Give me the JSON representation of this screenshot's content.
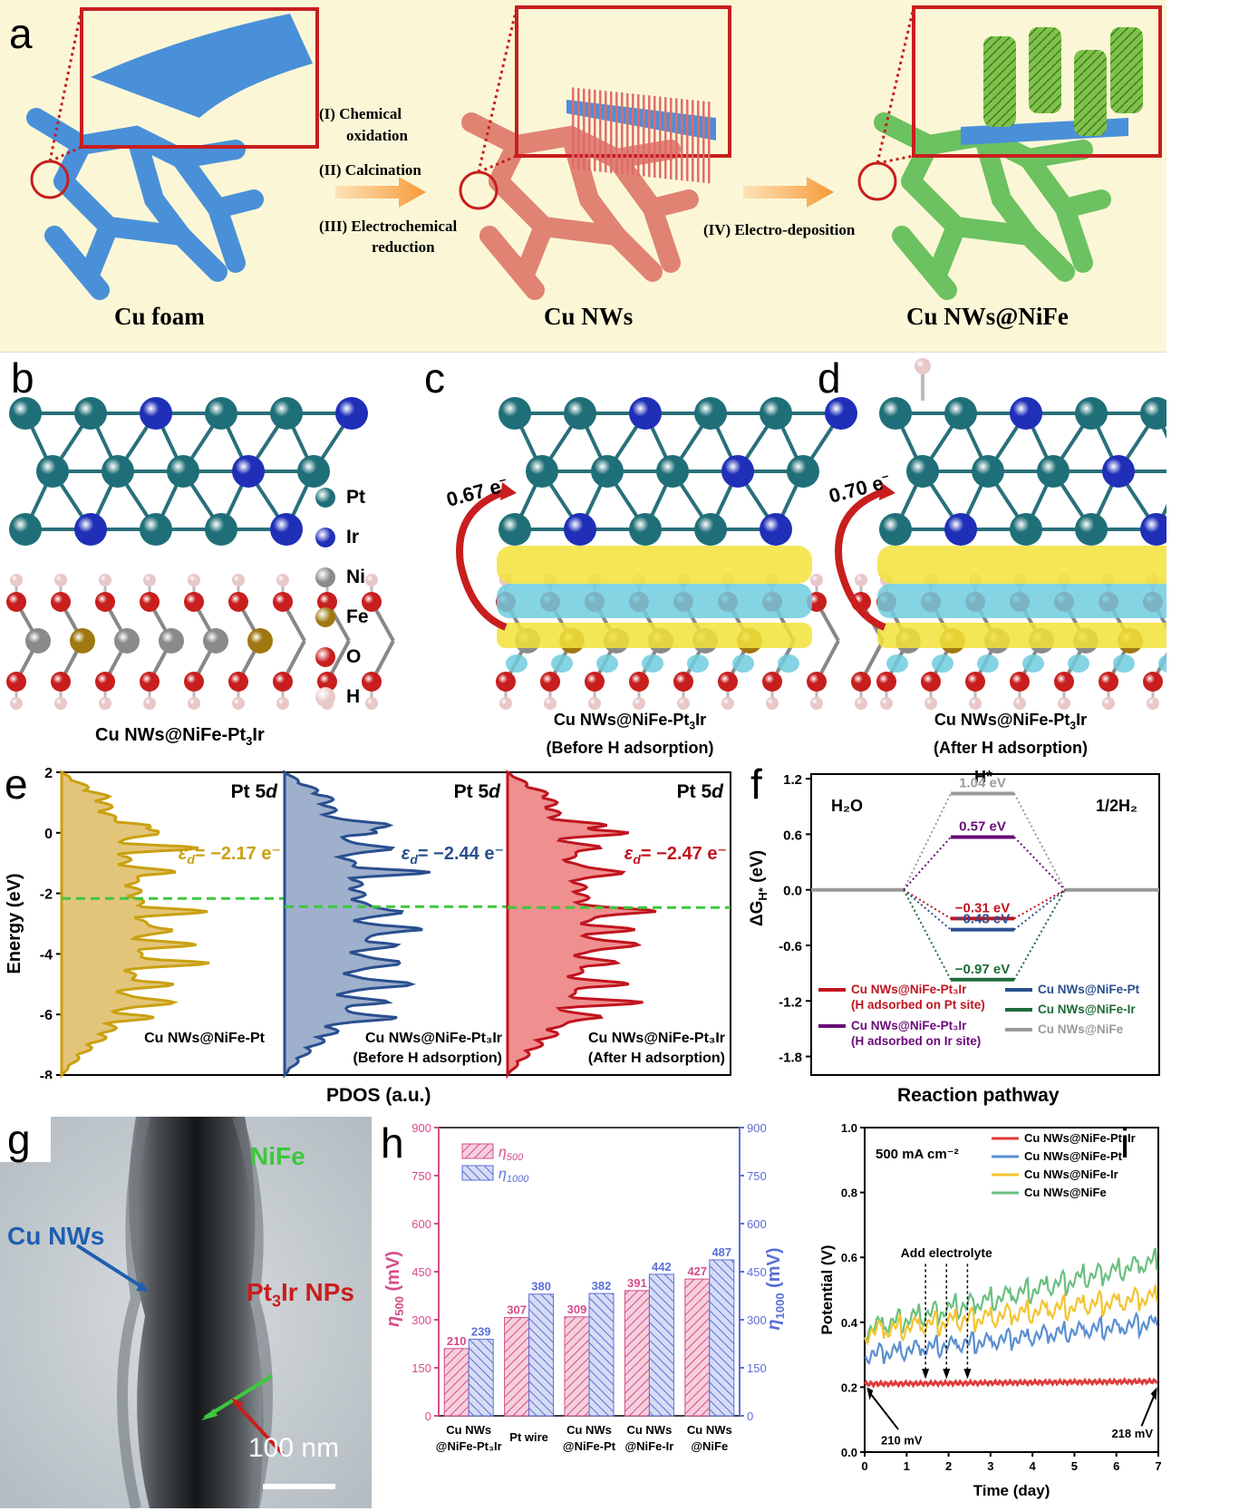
{
  "panel_a": {
    "label": "a",
    "captions": [
      "Cu foam",
      "Cu NWs",
      "Cu NWs@NiFe"
    ],
    "steps": [
      "(I) Chemical",
      "oxidation",
      "(II) Calcination",
      "(III) Electrochemical",
      "reduction",
      "(IV) Electro-deposition"
    ]
  },
  "panel_b": {
    "label": "b",
    "legend": [
      "Pt",
      "Ir",
      "Ni",
      "Fe",
      "O",
      "H"
    ],
    "legend_colors": [
      "#1f6f78",
      "#1f2fb8",
      "#8a8a8a",
      "#a07812",
      "#c81e1e",
      "#e8c8c8"
    ],
    "caption_pre": "Cu NWs@NiFe-Pt",
    "caption_sub": "3",
    "caption_post": "Ir"
  },
  "panel_c": {
    "label": "c",
    "charge": "0.67 e",
    "charge_sup": "−",
    "caption_pre": "Cu NWs@NiFe-Pt",
    "caption_sub": "3",
    "caption_post": "Ir",
    "caption2": "(Before H adsorption)"
  },
  "panel_d": {
    "label": "d",
    "charge": "0.70 e",
    "charge_sup": "−",
    "caption_pre": "Cu NWs@NiFe-Pt",
    "caption_sub": "3",
    "caption_post": "Ir",
    "caption2": "(After H adsorption)"
  },
  "panel_e": {
    "label": "e",
    "ylabel": "Energy (eV)",
    "xlabel": "PDOS (a.u.)",
    "yticks": [
      "2",
      "0",
      "-2",
      "-4",
      "-6",
      "-8"
    ],
    "orbital_pre": "Pt 5",
    "orbital_it": "d",
    "eps_sym": "ε",
    "eps_sub": "d",
    "subpanels": [
      {
        "eps_val": "= −2.17 e⁻",
        "name": "Cu NWs@NiFe-Pt",
        "name2": "",
        "color": "#c9a011",
        "fill": "#e3c57a",
        "center": -2.17
      },
      {
        "eps_val": "= −2.44 e⁻",
        "name": "Cu NWs@NiFe-Pt₃Ir",
        "name2": "(Before  H adsorption)",
        "color": "#2a4f8f",
        "fill": "#9fb0cc",
        "center": -2.44
      },
      {
        "eps_val": "= −2.47 e⁻",
        "name": "Cu NWs@NiFe-Pt₃Ir",
        "name2": "(After  H adsorption)",
        "color": "#c0141e",
        "fill": "#ef8f8f",
        "center": -2.47
      }
    ]
  },
  "panel_f": {
    "label": "f",
    "ylabel": "ΔG",
    "ylabel_sub": "H*",
    "ylabel_unit": " (eV)",
    "xlabel": "Reaction pathway",
    "yticks": [
      "1.2",
      "0.6",
      "0.0",
      "-0.6",
      "-1.2",
      "-1.8"
    ],
    "left_label": "H₂O",
    "right_label": "1/2H₂",
    "center_label": "H*",
    "levels": [
      {
        "value": 1.04,
        "label": "1.04 eV",
        "color": "#9a9a9a"
      },
      {
        "value": 0.57,
        "label": "0.57 eV",
        "color": "#6a0a78"
      },
      {
        "value": -0.31,
        "label": "−0.31 eV",
        "color": "#c0141e"
      },
      {
        "value": -0.43,
        "label": "−0.43 eV",
        "color": "#2a4f8f"
      },
      {
        "value": -0.97,
        "label": "−0.97 eV",
        "color": "#1e6a38"
      }
    ],
    "legend": [
      {
        "text": "Cu NWs@NiFe-Pt₃Ir",
        "text2": "(H adsorbed on Pt site)",
        "color": "#c0141e"
      },
      {
        "text": "Cu NWs@NiFe-Pt",
        "text2": "",
        "color": "#2a4f8f"
      },
      {
        "text": "Cu NWs@NiFe-Ir",
        "text2": "",
        "color": "#1e6a38"
      },
      {
        "text": "Cu NWs@NiFe-Pt₃Ir",
        "text2": "(H adsorbed on Ir site)",
        "color": "#6a0a78"
      },
      {
        "text": "Cu NWs@NiFe",
        "text2": "",
        "color": "#9a9a9a"
      }
    ]
  },
  "panel_g": {
    "label": "g",
    "nife": "NiFe",
    "cunws": "Cu NWs",
    "pt3ir_pre": "Pt",
    "pt3ir_sub": "3",
    "pt3ir_post": "Ir NPs",
    "scale": "100 nm"
  },
  "panel_h": {
    "label": "h",
    "ylabel_left": "η",
    "ylabel_left_sub": "500",
    "ylabel_left_unit": " (mV)",
    "ylabel_right": "η",
    "ylabel_right_sub": "1000",
    "ylabel_right_unit": " (mV)",
    "yticks": [
      "0",
      "150",
      "300",
      "450",
      "600",
      "750",
      "900"
    ],
    "legend": [
      {
        "sym": "η",
        "sub": "500"
      },
      {
        "sym": "η",
        "sub": "1000"
      }
    ],
    "cat1": [
      "Cu NWs",
      "Pt wire",
      "Cu NWs",
      "Cu NWs",
      "Cu NWs"
    ],
    "cat2": [
      "@NiFe-Pt₃Ir",
      "",
      "@NiFe-Pt",
      "@NiFe-Ir",
      "@NiFe"
    ]
  },
  "panel_i": {
    "label": "i",
    "ylabel": "Potential (V)",
    "xlabel": "Time (day)",
    "yticks": [
      "0.0",
      "0.2",
      "0.4",
      "0.6",
      "0.8",
      "1.0"
    ],
    "xticks": [
      "0",
      "1",
      "2",
      "3",
      "4",
      "5",
      "6",
      "7"
    ],
    "current": "500 mA cm⁻²",
    "add": "Add electrolyte",
    "start": "210 mV",
    "end": "218 mV",
    "legend": [
      {
        "text": "Cu NWs@NiFe-Pt₃Ir",
        "color": "#e03a3a"
      },
      {
        "text": "Cu NWs@NiFe-Pt",
        "color": "#5a8fcf"
      },
      {
        "text": "Cu NWs@NiFe-Ir",
        "color": "#f4c430"
      },
      {
        "text": "Cu NWs@NiFe",
        "color": "#6abf7f"
      }
    ]
  },
  "chart_data": [
    {
      "type": "bar",
      "panel": "h",
      "categories": [
        "Cu NWs @NiFe-Pt3Ir",
        "Pt wire",
        "Cu NWs @NiFe-Pt",
        "Cu NWs @NiFe-Ir",
        "Cu NWs @NiFe"
      ],
      "series": [
        {
          "name": "η500",
          "values": [
            210,
            307,
            309,
            391,
            427
          ],
          "color": "#d64d8a"
        },
        {
          "name": "η1000",
          "values": [
            239,
            380,
            382,
            442,
            487
          ],
          "color": "#5b6fd6"
        }
      ],
      "ylabel": "η500 (mV)",
      "y2label": "η1000 (mV)",
      "ylim": [
        0,
        900
      ]
    },
    {
      "type": "line",
      "panel": "i",
      "xlabel": "Time (day)",
      "ylabel": "Potential (V)",
      "xlim": [
        0,
        7
      ],
      "ylim": [
        0.0,
        1.0
      ],
      "series": [
        {
          "name": "Cu NWs@NiFe-Pt3Ir",
          "start": 0.21,
          "end": 0.218
        },
        {
          "name": "Cu NWs@NiFe-Pt",
          "start": 0.3,
          "end": 0.4
        },
        {
          "name": "Cu NWs@NiFe-Ir",
          "start": 0.37,
          "end": 0.48
        },
        {
          "name": "Cu NWs@NiFe",
          "start": 0.38,
          "end": 0.59
        }
      ],
      "annotations": {
        "add_electrolyte_days": [
          1.45,
          1.95,
          2.45
        ],
        "start_value": 210,
        "end_value": 218
      }
    },
    {
      "type": "line",
      "panel": "f",
      "ylabel": "ΔGH* (eV)",
      "xlabel": "Reaction pathway",
      "ylim": [
        -2.0,
        1.25
      ],
      "series": [
        {
          "name": "Cu NWs@NiFe",
          "values": [
            0,
            1.04,
            0
          ]
        },
        {
          "name": "Cu NWs@NiFe-Pt3Ir (H adsorbed on Ir site)",
          "values": [
            0,
            0.57,
            0
          ]
        },
        {
          "name": "Cu NWs@NiFe-Pt3Ir (H adsorbed on Pt site)",
          "values": [
            0,
            -0.31,
            0
          ]
        },
        {
          "name": "Cu NWs@NiFe-Pt",
          "values": [
            0,
            -0.43,
            0
          ]
        },
        {
          "name": "Cu NWs@NiFe-Ir",
          "values": [
            0,
            -0.97,
            0
          ]
        }
      ]
    }
  ]
}
